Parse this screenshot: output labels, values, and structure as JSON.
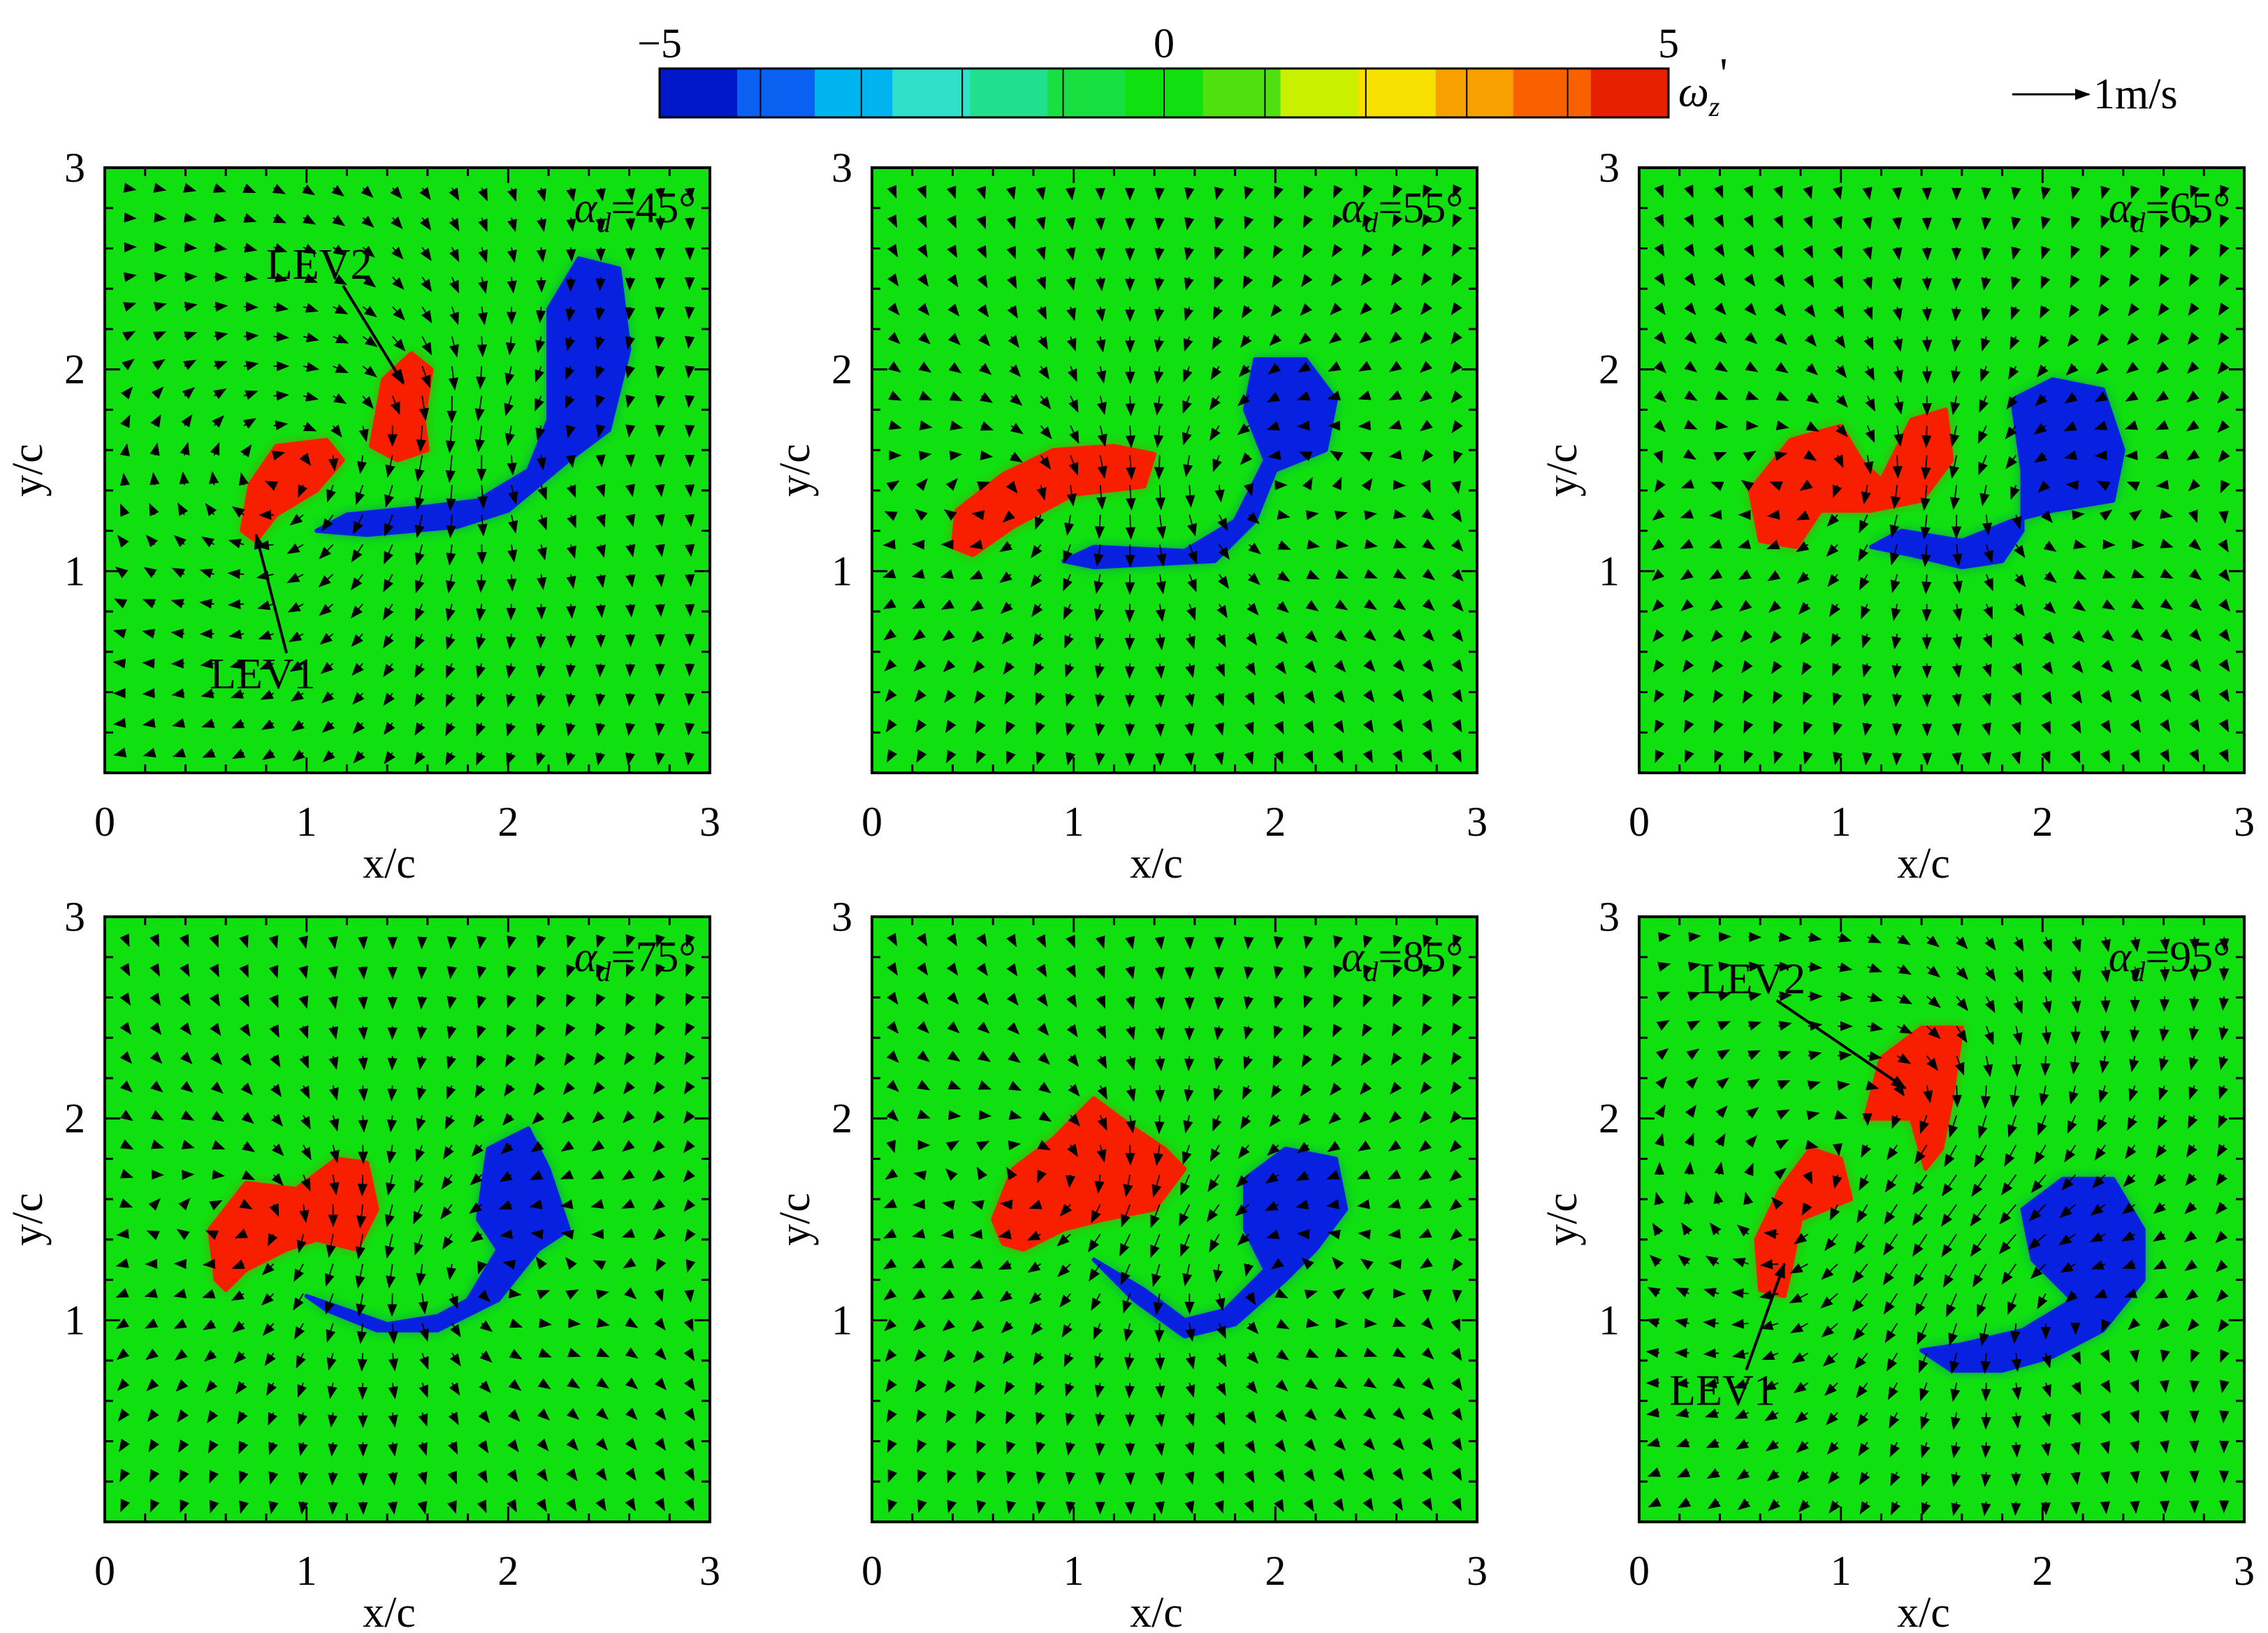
{
  "colorbar": {
    "min_label": "−5",
    "mid_label": "0",
    "max_label": "5",
    "variable_main": "ω",
    "variable_sub": "z",
    "variable_prime": "'",
    "stops": [
      "#0018c8",
      "#0a60f0",
      "#00b4f0",
      "#30e0c8",
      "#20e090",
      "#18e040",
      "#10e010",
      "#50e010",
      "#c8f000",
      "#f8e000",
      "#f8a000",
      "#f86000",
      "#e82000"
    ]
  },
  "scale_label": "1m/s",
  "colors": {
    "field": "#10e010",
    "positive": "#f81e00",
    "negative": "#0820e0",
    "axis": "#000000"
  },
  "chart_data": [
    {
      "type": "heatmap",
      "title_symbol": "α",
      "title_sub": "d",
      "title_value": "=45°",
      "xlabel": "x/c",
      "ylabel": "y/c",
      "xlim": [
        0,
        3
      ],
      "ylim": [
        0,
        3
      ],
      "xticks": [
        "0",
        "1",
        "2",
        "3"
      ],
      "yticks": [
        "1",
        "2",
        "3"
      ],
      "positive_regions": [
        [
          [
            0.68,
            1.2
          ],
          [
            0.72,
            1.43
          ],
          [
            0.85,
            1.62
          ],
          [
            1.1,
            1.65
          ],
          [
            1.18,
            1.55
          ],
          [
            1.05,
            1.4
          ],
          [
            0.85,
            1.28
          ],
          [
            0.75,
            1.15
          ]
        ],
        [
          [
            1.32,
            1.62
          ],
          [
            1.38,
            1.95
          ],
          [
            1.52,
            2.08
          ],
          [
            1.62,
            2.0
          ],
          [
            1.58,
            1.75
          ],
          [
            1.6,
            1.6
          ],
          [
            1.45,
            1.55
          ]
        ]
      ],
      "negative_regions": [
        [
          [
            1.05,
            1.2
          ],
          [
            1.2,
            1.28
          ],
          [
            1.6,
            1.32
          ],
          [
            1.85,
            1.35
          ],
          [
            2.1,
            1.5
          ],
          [
            2.2,
            1.75
          ],
          [
            2.2,
            2.3
          ],
          [
            2.35,
            2.55
          ],
          [
            2.55,
            2.5
          ],
          [
            2.6,
            2.1
          ],
          [
            2.5,
            1.7
          ],
          [
            2.3,
            1.55
          ],
          [
            2.0,
            1.3
          ],
          [
            1.75,
            1.22
          ],
          [
            1.3,
            1.18
          ]
        ]
      ],
      "annotations": [
        {
          "text": "LEV2",
          "text_x": 0.8,
          "text_y": 2.45,
          "arrow_to_x": 1.48,
          "arrow_to_y": 1.93
        },
        {
          "text": "LEV1",
          "text_x": 0.52,
          "text_y": 0.42,
          "arrow_to_x": 0.75,
          "arrow_to_y": 1.18
        }
      ]
    },
    {
      "type": "heatmap",
      "title_symbol": "α",
      "title_sub": "d",
      "title_value": "=55°",
      "xlabel": "x/c",
      "ylabel": "y/c",
      "xlim": [
        0,
        3
      ],
      "ylim": [
        0,
        3
      ],
      "xticks": [
        "0",
        "1",
        "2",
        "3"
      ],
      "yticks": [
        "1",
        "2",
        "3"
      ],
      "positive_regions": [
        [
          [
            0.4,
            1.12
          ],
          [
            0.42,
            1.3
          ],
          [
            0.65,
            1.48
          ],
          [
            0.9,
            1.6
          ],
          [
            1.2,
            1.62
          ],
          [
            1.4,
            1.58
          ],
          [
            1.35,
            1.42
          ],
          [
            1.0,
            1.38
          ],
          [
            0.7,
            1.22
          ],
          [
            0.5,
            1.08
          ]
        ]
      ],
      "negative_regions": [
        [
          [
            0.95,
            1.05
          ],
          [
            1.1,
            1.12
          ],
          [
            1.55,
            1.1
          ],
          [
            1.8,
            1.25
          ],
          [
            1.95,
            1.55
          ],
          [
            1.85,
            1.8
          ],
          [
            1.9,
            2.05
          ],
          [
            2.15,
            2.05
          ],
          [
            2.3,
            1.85
          ],
          [
            2.25,
            1.6
          ],
          [
            2.0,
            1.5
          ],
          [
            1.9,
            1.25
          ],
          [
            1.7,
            1.05
          ],
          [
            1.1,
            1.02
          ]
        ]
      ],
      "annotations": []
    },
    {
      "type": "heatmap",
      "title_symbol": "α",
      "title_sub": "d",
      "title_value": "=65°",
      "xlabel": "x/c",
      "ylabel": "y/c",
      "xlim": [
        0,
        3
      ],
      "ylim": [
        0,
        3
      ],
      "xticks": [
        "0",
        "1",
        "2",
        "3"
      ],
      "yticks": [
        "1",
        "2",
        "3"
      ],
      "positive_regions": [
        [
          [
            0.6,
            1.15
          ],
          [
            0.55,
            1.4
          ],
          [
            0.75,
            1.65
          ],
          [
            1.0,
            1.72
          ],
          [
            1.1,
            1.55
          ],
          [
            1.2,
            1.45
          ],
          [
            1.35,
            1.75
          ],
          [
            1.52,
            1.8
          ],
          [
            1.55,
            1.55
          ],
          [
            1.4,
            1.35
          ],
          [
            1.15,
            1.3
          ],
          [
            0.9,
            1.3
          ],
          [
            0.78,
            1.12
          ]
        ]
      ],
      "negative_regions": [
        [
          [
            1.15,
            1.12
          ],
          [
            1.35,
            1.08
          ],
          [
            1.6,
            1.02
          ],
          [
            1.8,
            1.05
          ],
          [
            1.9,
            1.2
          ],
          [
            1.9,
            1.5
          ],
          [
            1.85,
            1.85
          ],
          [
            2.05,
            1.95
          ],
          [
            2.3,
            1.9
          ],
          [
            2.4,
            1.6
          ],
          [
            2.35,
            1.35
          ],
          [
            2.05,
            1.3
          ],
          [
            1.85,
            1.25
          ],
          [
            1.6,
            1.15
          ],
          [
            1.3,
            1.2
          ]
        ]
      ],
      "annotations": []
    },
    {
      "type": "heatmap",
      "title_symbol": "α",
      "title_sub": "d",
      "title_value": "=75°",
      "xlabel": "x/c",
      "ylabel": "y/c",
      "xlim": [
        0,
        3
      ],
      "ylim": [
        0,
        3
      ],
      "xticks": [
        "0",
        "1",
        "2",
        "3"
      ],
      "yticks": [
        "1",
        "2",
        "3"
      ],
      "positive_regions": [
        [
          [
            0.55,
            1.2
          ],
          [
            0.52,
            1.45
          ],
          [
            0.7,
            1.68
          ],
          [
            0.95,
            1.65
          ],
          [
            1.15,
            1.8
          ],
          [
            1.3,
            1.78
          ],
          [
            1.35,
            1.55
          ],
          [
            1.25,
            1.35
          ],
          [
            1.05,
            1.4
          ],
          [
            0.9,
            1.35
          ],
          [
            0.7,
            1.25
          ],
          [
            0.6,
            1.15
          ]
        ]
      ],
      "negative_regions": [
        [
          [
            1.0,
            1.12
          ],
          [
            1.2,
            1.05
          ],
          [
            1.4,
            0.98
          ],
          [
            1.65,
            1.02
          ],
          [
            1.8,
            1.1
          ],
          [
            1.95,
            1.35
          ],
          [
            1.85,
            1.5
          ],
          [
            1.9,
            1.85
          ],
          [
            2.1,
            1.95
          ],
          [
            2.2,
            1.75
          ],
          [
            2.3,
            1.45
          ],
          [
            2.15,
            1.35
          ],
          [
            1.95,
            1.1
          ],
          [
            1.65,
            0.95
          ],
          [
            1.35,
            0.95
          ],
          [
            1.1,
            1.05
          ]
        ]
      ],
      "annotations": []
    },
    {
      "type": "heatmap",
      "title_symbol": "α",
      "title_sub": "d",
      "title_value": "=85°",
      "xlabel": "x/c",
      "ylabel": "y/c",
      "xlim": [
        0,
        3
      ],
      "ylim": [
        0,
        3
      ],
      "xticks": [
        "0",
        "1",
        "2",
        "3"
      ],
      "yticks": [
        "1",
        "2",
        "3"
      ],
      "positive_regions": [
        [
          [
            0.6,
            1.5
          ],
          [
            0.7,
            1.75
          ],
          [
            0.9,
            1.9
          ],
          [
            1.1,
            2.1
          ],
          [
            1.3,
            1.95
          ],
          [
            1.45,
            1.85
          ],
          [
            1.55,
            1.75
          ],
          [
            1.4,
            1.55
          ],
          [
            1.15,
            1.5
          ],
          [
            0.95,
            1.45
          ],
          [
            0.75,
            1.35
          ],
          [
            0.65,
            1.38
          ]
        ]
      ],
      "negative_regions": [
        [
          [
            1.1,
            1.3
          ],
          [
            1.35,
            1.15
          ],
          [
            1.55,
            1.0
          ],
          [
            1.75,
            1.05
          ],
          [
            1.95,
            1.25
          ],
          [
            1.85,
            1.45
          ],
          [
            1.85,
            1.7
          ],
          [
            2.05,
            1.85
          ],
          [
            2.3,
            1.8
          ],
          [
            2.35,
            1.55
          ],
          [
            2.2,
            1.35
          ],
          [
            2.05,
            1.2
          ],
          [
            1.8,
            0.98
          ],
          [
            1.55,
            0.92
          ],
          [
            1.3,
            1.1
          ]
        ]
      ],
      "annotations": []
    },
    {
      "type": "heatmap",
      "title_symbol": "α",
      "title_sub": "d",
      "title_value": "=95°",
      "xlabel": "x/c",
      "ylabel": "y/c",
      "xlim": [
        0,
        3
      ],
      "ylim": [
        0,
        3
      ],
      "xticks": [
        "0",
        "1",
        "2",
        "3"
      ],
      "yticks": [
        "1",
        "2",
        "3"
      ],
      "positive_regions": [
        [
          [
            0.6,
            1.15
          ],
          [
            0.58,
            1.4
          ],
          [
            0.7,
            1.65
          ],
          [
            0.85,
            1.85
          ],
          [
            1.0,
            1.8
          ],
          [
            1.05,
            1.6
          ],
          [
            0.8,
            1.5
          ],
          [
            0.75,
            1.25
          ],
          [
            0.72,
            1.12
          ]
        ],
        [
          [
            1.12,
            2.0
          ],
          [
            1.2,
            2.3
          ],
          [
            1.4,
            2.45
          ],
          [
            1.6,
            2.45
          ],
          [
            1.55,
            2.1
          ],
          [
            1.5,
            1.85
          ],
          [
            1.42,
            1.75
          ],
          [
            1.35,
            2.0
          ]
        ]
      ],
      "negative_regions": [
        [
          [
            1.4,
            0.85
          ],
          [
            1.55,
            0.75
          ],
          [
            1.8,
            0.75
          ],
          [
            2.05,
            0.82
          ],
          [
            2.3,
            0.95
          ],
          [
            2.5,
            1.2
          ],
          [
            2.5,
            1.45
          ],
          [
            2.35,
            1.7
          ],
          [
            2.1,
            1.7
          ],
          [
            1.9,
            1.55
          ],
          [
            1.95,
            1.3
          ],
          [
            2.15,
            1.1
          ],
          [
            1.9,
            0.95
          ],
          [
            1.6,
            0.88
          ]
        ]
      ],
      "annotations": [
        {
          "text": "LEV2",
          "text_x": 0.3,
          "text_y": 2.62,
          "arrow_to_x": 1.32,
          "arrow_to_y": 2.15
        },
        {
          "text": "LEV1",
          "text_x": 0.15,
          "text_y": 0.58,
          "arrow_to_x": 0.72,
          "arrow_to_y": 1.28
        }
      ]
    }
  ]
}
